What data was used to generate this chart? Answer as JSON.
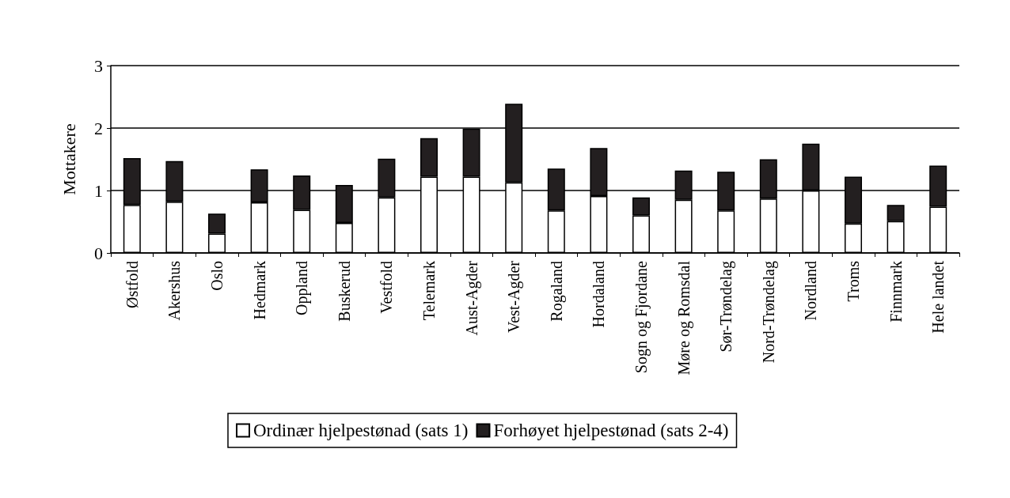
{
  "chart_data": {
    "type": "bar",
    "stacked": true,
    "ylabel": "Mottakere",
    "categories": [
      "Østfold",
      "Akershus",
      "Oslo",
      "Hedmark",
      "Oppland",
      "Buskerud",
      "Vestfold",
      "Telemark",
      "Aust-Agder",
      "Vest-Agder",
      "Rogaland",
      "Hordaland",
      "Sogn og Fjordane",
      "Møre og Romsdal",
      "Sør-Trøndelag",
      "Nord-Trøndelag",
      "Nordland",
      "Troms",
      "Finnmark",
      "Hele landet"
    ],
    "series": [
      {
        "name": "Ordinær hjelpestønad (sats 1)",
        "color": "#ffffff",
        "values": [
          0.77,
          0.82,
          0.31,
          0.81,
          0.69,
          0.48,
          0.89,
          1.22,
          1.22,
          1.13,
          0.68,
          0.91,
          0.6,
          0.85,
          0.68,
          0.87,
          1.0,
          0.47,
          0.51,
          0.74
        ]
      },
      {
        "name": "Forhøyet hjelpestønad (sats 2-4)",
        "color": "#231f20",
        "values": [
          0.75,
          0.65,
          0.32,
          0.53,
          0.55,
          0.61,
          0.62,
          0.62,
          0.77,
          1.26,
          0.67,
          0.77,
          0.29,
          0.47,
          0.62,
          0.63,
          0.75,
          0.75,
          0.26,
          0.66
        ]
      }
    ],
    "ylim": [
      0,
      3
    ],
    "yticks": [
      0,
      1,
      2,
      3
    ],
    "grid": "y",
    "legend": "bottom"
  }
}
